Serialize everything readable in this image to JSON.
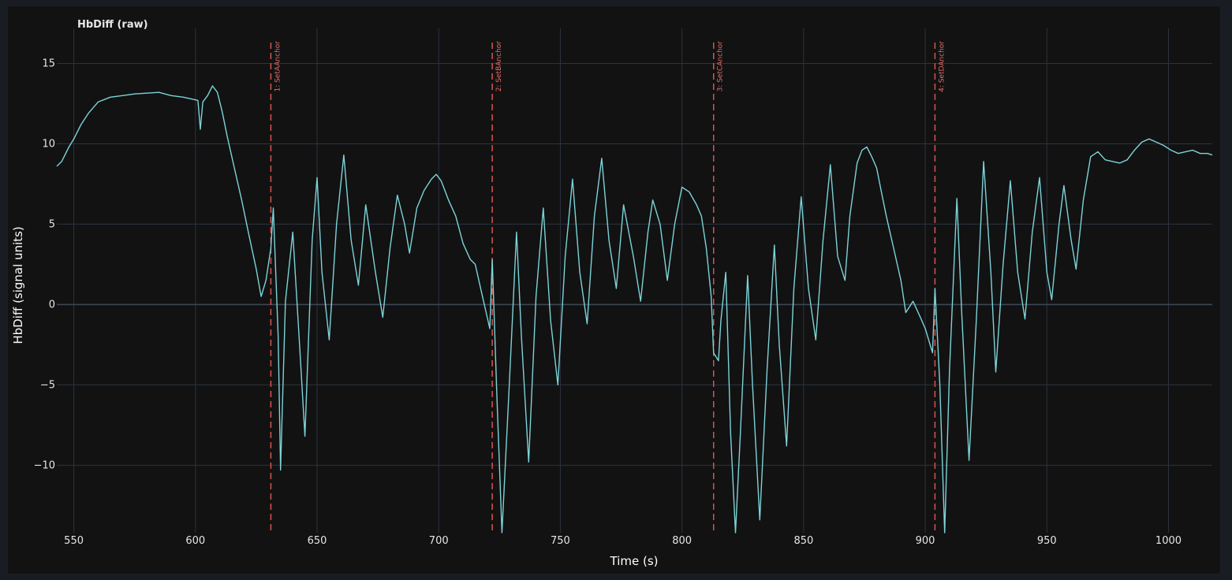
{
  "chart_data": {
    "type": "line",
    "title": "HbDiff (raw)",
    "xlabel": "Time (s)",
    "ylabel": "HbDiff (signal units)",
    "xlim": [
      543,
      1018
    ],
    "ylim": [
      -14.2,
      16.2
    ],
    "xticks": [
      550,
      600,
      650,
      700,
      750,
      800,
      850,
      900,
      950,
      1000
    ],
    "yticks": [
      -10,
      -5,
      0,
      5,
      10,
      15
    ],
    "ytick_labels": [
      "−10",
      "−5",
      "0",
      "5",
      "10",
      "15"
    ],
    "grid": true,
    "zero_line": true,
    "colors": {
      "series": "#7dd3d8",
      "event": "#d9534f",
      "grid": "#2c3240",
      "zero": "#3c4756"
    },
    "events": [
      {
        "x": 631,
        "label": "1: SetAAnchor"
      },
      {
        "x": 722,
        "label": "2: SetBAnchor"
      },
      {
        "x": 813,
        "label": "3: SetCAnchor"
      },
      {
        "x": 904,
        "label": "4: SetDAnchor"
      }
    ],
    "series": [
      {
        "points": [
          [
            543,
            8.6
          ],
          [
            545,
            8.9
          ],
          [
            548,
            9.8
          ],
          [
            550,
            10.3
          ],
          [
            553,
            11.2
          ],
          [
            556,
            11.9
          ],
          [
            560,
            12.6
          ],
          [
            565,
            12.9
          ],
          [
            570,
            13.0
          ],
          [
            575,
            13.1
          ],
          [
            580,
            13.15
          ],
          [
            585,
            13.2
          ],
          [
            590,
            13.0
          ],
          [
            595,
            12.9
          ],
          [
            598,
            12.8
          ],
          [
            601,
            12.7
          ],
          [
            602,
            10.9
          ],
          [
            603,
            12.6
          ],
          [
            605,
            13.0
          ],
          [
            607,
            13.6
          ],
          [
            609,
            13.2
          ],
          [
            611,
            12.0
          ],
          [
            613,
            10.5
          ],
          [
            616,
            8.5
          ],
          [
            619,
            6.5
          ],
          [
            622,
            4.3
          ],
          [
            625,
            2.2
          ],
          [
            627,
            0.5
          ],
          [
            629,
            1.5
          ],
          [
            631,
            3.5
          ],
          [
            632,
            6.0
          ],
          [
            634,
            -2.0
          ],
          [
            635,
            -10.3
          ],
          [
            637,
            0.2
          ],
          [
            640,
            4.5
          ],
          [
            643,
            -3.0
          ],
          [
            645,
            -8.2
          ],
          [
            648,
            4.0
          ],
          [
            650,
            7.9
          ],
          [
            652,
            2.0
          ],
          [
            655,
            -2.2
          ],
          [
            658,
            5.0
          ],
          [
            661,
            9.3
          ],
          [
            664,
            4.0
          ],
          [
            667,
            1.2
          ],
          [
            670,
            6.2
          ],
          [
            674,
            2.0
          ],
          [
            677,
            -0.8
          ],
          [
            680,
            3.5
          ],
          [
            683,
            6.8
          ],
          [
            686,
            5.0
          ],
          [
            688,
            3.2
          ],
          [
            691,
            6.0
          ],
          [
            694,
            7.1
          ],
          [
            697,
            7.8
          ],
          [
            699,
            8.1
          ],
          [
            701,
            7.7
          ],
          [
            704,
            6.5
          ],
          [
            707,
            5.5
          ],
          [
            710,
            3.8
          ],
          [
            713,
            2.8
          ],
          [
            715,
            2.5
          ],
          [
            718,
            0.5
          ],
          [
            721,
            -1.5
          ],
          [
            722,
            2.8
          ],
          [
            724,
            -6.0
          ],
          [
            726,
            -14.2
          ],
          [
            729,
            -5.0
          ],
          [
            732,
            4.5
          ],
          [
            734,
            -2.0
          ],
          [
            737,
            -9.8
          ],
          [
            740,
            0.5
          ],
          [
            743,
            6.0
          ],
          [
            746,
            -1.0
          ],
          [
            749,
            -5.0
          ],
          [
            752,
            3.0
          ],
          [
            755,
            7.8
          ],
          [
            758,
            2.0
          ],
          [
            761,
            -1.2
          ],
          [
            764,
            5.5
          ],
          [
            767,
            9.1
          ],
          [
            770,
            4.0
          ],
          [
            773,
            1.0
          ],
          [
            776,
            6.2
          ],
          [
            780,
            3.0
          ],
          [
            783,
            0.2
          ],
          [
            786,
            4.5
          ],
          [
            788,
            6.5
          ],
          [
            791,
            5.0
          ],
          [
            794,
            1.5
          ],
          [
            797,
            5.0
          ],
          [
            800,
            7.3
          ],
          [
            803,
            7.0
          ],
          [
            806,
            6.2
          ],
          [
            808,
            5.5
          ],
          [
            810,
            3.5
          ],
          [
            812,
            0.5
          ],
          [
            813,
            -3.0
          ],
          [
            815,
            -3.5
          ],
          [
            816,
            -1.0
          ],
          [
            818,
            2.0
          ],
          [
            820,
            -8.0
          ],
          [
            822,
            -14.2
          ],
          [
            824,
            -8.0
          ],
          [
            827,
            1.8
          ],
          [
            829,
            -5.0
          ],
          [
            832,
            -13.4
          ],
          [
            835,
            -4.0
          ],
          [
            838,
            3.7
          ],
          [
            840,
            -2.5
          ],
          [
            843,
            -8.8
          ],
          [
            846,
            1.0
          ],
          [
            849,
            6.7
          ],
          [
            852,
            1.0
          ],
          [
            855,
            -2.2
          ],
          [
            858,
            4.0
          ],
          [
            861,
            8.7
          ],
          [
            864,
            3.0
          ],
          [
            867,
            1.5
          ],
          [
            869,
            5.5
          ],
          [
            872,
            8.8
          ],
          [
            874,
            9.6
          ],
          [
            876,
            9.8
          ],
          [
            878,
            9.2
          ],
          [
            880,
            8.5
          ],
          [
            882,
            7.0
          ],
          [
            884,
            5.5
          ],
          [
            887,
            3.5
          ],
          [
            890,
            1.5
          ],
          [
            892,
            -0.5
          ],
          [
            895,
            0.2
          ],
          [
            898,
            -0.8
          ],
          [
            900,
            -1.5
          ],
          [
            903,
            -3.0
          ],
          [
            904,
            1.0
          ],
          [
            906,
            -5.0
          ],
          [
            908,
            -14.2
          ],
          [
            910,
            -4.0
          ],
          [
            913,
            6.6
          ],
          [
            915,
            -0.5
          ],
          [
            918,
            -9.7
          ],
          [
            921,
            -1.0
          ],
          [
            924,
            8.9
          ],
          [
            927,
            2.0
          ],
          [
            929,
            -4.2
          ],
          [
            932,
            2.5
          ],
          [
            935,
            7.7
          ],
          [
            938,
            2.0
          ],
          [
            941,
            -0.9
          ],
          [
            944,
            4.5
          ],
          [
            947,
            7.9
          ],
          [
            950,
            2.0
          ],
          [
            952,
            0.3
          ],
          [
            955,
            5.0
          ],
          [
            957,
            7.4
          ],
          [
            960,
            4.0
          ],
          [
            962,
            2.2
          ],
          [
            965,
            6.5
          ],
          [
            968,
            9.2
          ],
          [
            971,
            9.5
          ],
          [
            974,
            9.0
          ],
          [
            977,
            8.9
          ],
          [
            980,
            8.8
          ],
          [
            983,
            9.0
          ],
          [
            986,
            9.6
          ],
          [
            989,
            10.1
          ],
          [
            992,
            10.3
          ],
          [
            995,
            10.1
          ],
          [
            998,
            9.9
          ],
          [
            1001,
            9.6
          ],
          [
            1004,
            9.4
          ],
          [
            1007,
            9.5
          ],
          [
            1010,
            9.6
          ],
          [
            1013,
            9.4
          ],
          [
            1016,
            9.4
          ],
          [
            1018,
            9.3
          ]
        ]
      }
    ]
  }
}
